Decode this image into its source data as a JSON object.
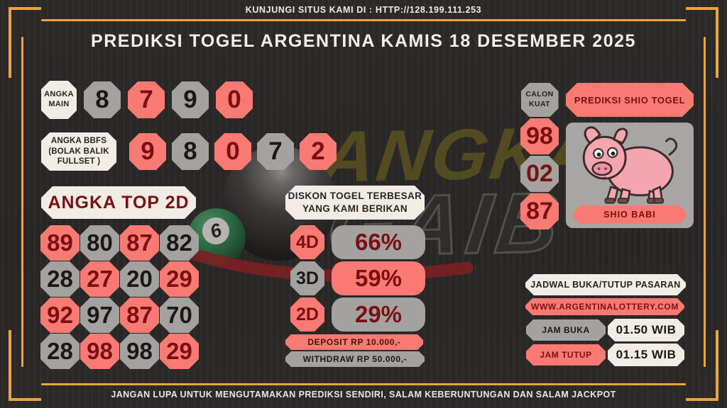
{
  "top_banner": {
    "text": "KUNJUNGI SITUS KAMI DI : HTTP://128.199.111.253"
  },
  "title": "PREDIKSI TOGEL ARGENTINA KAMIS 18 DESEMBER 2025",
  "watermark": {
    "line1": "ANGKA",
    "line2": "GAIB"
  },
  "decor": {
    "ball_number": "6"
  },
  "angka_main": {
    "label": "ANGKA\nMAIN",
    "cells": [
      {
        "value": "8",
        "color": "gray"
      },
      {
        "value": "7",
        "color": "red"
      },
      {
        "value": "9",
        "color": "gray"
      },
      {
        "value": "0",
        "color": "red"
      }
    ]
  },
  "angka_bbfs": {
    "label": "ANGKA BBFS\n(BOLAK BALIK\nFULLSET )",
    "cells": [
      {
        "value": "9",
        "color": "red"
      },
      {
        "value": "8",
        "color": "gray"
      },
      {
        "value": "0",
        "color": "red"
      },
      {
        "value": "7",
        "color": "gray"
      },
      {
        "value": "2",
        "color": "red"
      }
    ]
  },
  "angka_top_2d": {
    "label": "ANGKA TOP 2D",
    "rows": [
      [
        {
          "value": "89",
          "color": "red"
        },
        {
          "value": "80",
          "color": "gray"
        },
        {
          "value": "87",
          "color": "red"
        },
        {
          "value": "82",
          "color": "gray"
        }
      ],
      [
        {
          "value": "28",
          "color": "gray"
        },
        {
          "value": "27",
          "color": "red"
        },
        {
          "value": "20",
          "color": "gray"
        },
        {
          "value": "29",
          "color": "red"
        }
      ],
      [
        {
          "value": "92",
          "color": "red"
        },
        {
          "value": "97",
          "color": "gray"
        },
        {
          "value": "87",
          "color": "red"
        },
        {
          "value": "70",
          "color": "gray"
        }
      ],
      [
        {
          "value": "28",
          "color": "gray"
        },
        {
          "value": "98",
          "color": "red"
        },
        {
          "value": "98",
          "color": "gray"
        },
        {
          "value": "29",
          "color": "red"
        }
      ]
    ]
  },
  "diskon": {
    "header": "DISKON TOGEL TERBESAR\nYANG KAMI BERIKAN",
    "rows": [
      {
        "label": "4D",
        "label_color": "red",
        "value": "66%",
        "value_color": "gray"
      },
      {
        "label": "3D",
        "label_color": "gray",
        "value": "59%",
        "value_color": "red"
      },
      {
        "label": "2D",
        "label_color": "red",
        "value": "29%",
        "value_color": "gray"
      }
    ],
    "deposit": "DEPOSIT RP 10.000,-",
    "withdraw": "WITHDRAW RP 50.000,-"
  },
  "calon_kuat": {
    "label": "CALON\nKUAT",
    "cells": [
      {
        "value": "98",
        "color": "red"
      },
      {
        "value": "02",
        "color": "gray"
      },
      {
        "value": "87",
        "color": "red"
      }
    ]
  },
  "shio": {
    "header": "PREDIKSI SHIO TOGEL",
    "animal": "pig",
    "badge": "SHIO BABI"
  },
  "jadwal": {
    "header": "JADWAL BUKA/TUTUP PASARAN",
    "website": "WWW.ARGENTINALOTTERY.COM",
    "rows": [
      {
        "label": "JAM BUKA",
        "label_color": "gray",
        "value": "01.50 WIB"
      },
      {
        "label": "JAM TUTUP",
        "label_color": "red",
        "value": "01.15 WIB"
      }
    ]
  },
  "bottom_banner": {
    "text": "JANGAN LUPA UNTUK MENGUTAMAKAN PREDIKSI SENDIRI, SALAM KEBERUNTUNGAN DAN SALAM JACKPOT"
  },
  "colors": {
    "accent_gold": "#eca440",
    "red": "#f97a72",
    "dark_red": "#7a1013",
    "gray": "#a3a2a0",
    "cream": "#f1ece5",
    "background": "#2d2b29"
  }
}
